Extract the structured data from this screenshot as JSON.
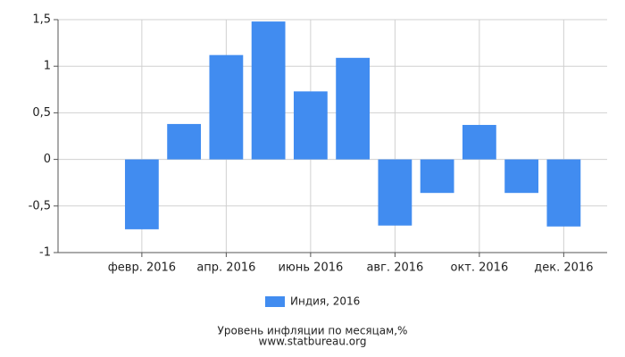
{
  "chart_data": {
    "type": "bar",
    "title": "Уровень инфляции по месяцам,%",
    "source": "www.statbureau.org",
    "categories": [
      null,
      "февр. 2016",
      null,
      "апр. 2016",
      null,
      "июнь 2016",
      null,
      "авг. 2016",
      null,
      "окт. 2016",
      null,
      "дек. 2016"
    ],
    "series": [
      {
        "name": "Индия, 2016",
        "color": "#418cf0",
        "values": [
          null,
          -0.75,
          0.38,
          1.12,
          1.48,
          0.73,
          1.09,
          -0.71,
          -0.36,
          0.37,
          -0.36,
          -0.72
        ]
      }
    ],
    "ylim": [
      -1,
      1.5
    ],
    "yticks": [
      -1,
      {
        "value": -0.5,
        "label": "-0,5"
      },
      0,
      {
        "value": 0.5,
        "label": "0,5"
      },
      1,
      {
        "value": 1.5,
        "label": "1,5"
      }
    ],
    "grid": true
  }
}
